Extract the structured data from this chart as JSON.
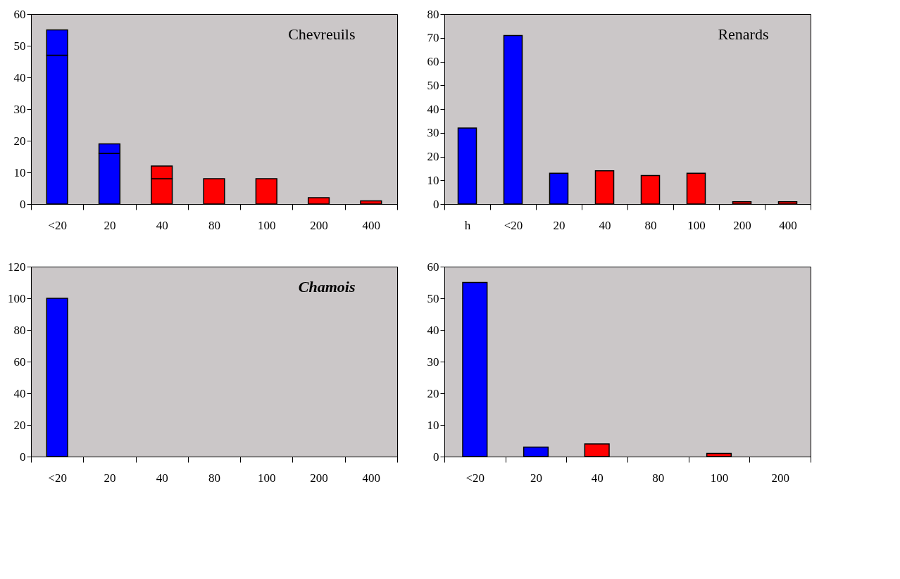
{
  "chart_data": [
    {
      "type": "bar",
      "title": "Chevreuils",
      "categories": [
        "<20",
        "20",
        "40",
        "80",
        "100",
        "200",
        "400"
      ],
      "stacked": true,
      "ylim": [
        0,
        60
      ],
      "yticks": [
        0,
        10,
        20,
        30,
        40,
        50,
        60
      ],
      "grid": false,
      "series": [
        {
          "colors": [
            "#0000ff",
            "#0000ff",
            "#ff0000",
            "#ff0000",
            "#ff0000",
            "#ff0000",
            "#ff0000"
          ],
          "values": [
            47,
            16,
            8,
            8,
            8,
            2,
            1
          ]
        },
        {
          "colors": [
            "#0000ff",
            "#0000ff",
            "#ff0000",
            null,
            null,
            null,
            null
          ],
          "values": [
            8,
            3,
            4,
            null,
            null,
            null,
            null
          ]
        }
      ]
    },
    {
      "type": "bar",
      "title": "Renards",
      "categories": [
        "h",
        "<20",
        "20",
        "40",
        "80",
        "100",
        "200",
        "400"
      ],
      "ylim": [
        0,
        80
      ],
      "yticks": [
        0,
        10,
        20,
        30,
        40,
        50,
        60,
        70,
        80
      ],
      "grid": false,
      "colors": [
        "#0000ff",
        "#0000ff",
        "#0000ff",
        "#ff0000",
        "#ff0000",
        "#ff0000",
        "#ff0000",
        "#ff0000"
      ],
      "values": [
        32,
        71,
        13,
        14,
        12,
        13,
        1,
        1
      ]
    },
    {
      "type": "bar",
      "title": "Chamois",
      "categories": [
        "<20",
        "20",
        "40",
        "80",
        "100",
        "200",
        "400"
      ],
      "ylim": [
        0,
        120
      ],
      "yticks": [
        0,
        20,
        40,
        60,
        80,
        100,
        120
      ],
      "grid": false,
      "colors": [
        "#0000ff",
        null,
        null,
        null,
        null,
        null,
        null
      ],
      "values": [
        100,
        null,
        null,
        null,
        null,
        null,
        null
      ]
    },
    {
      "type": "bar",
      "categories": [
        "<20",
        "20",
        "40",
        "80",
        "100",
        "200"
      ],
      "ylim": [
        0,
        60
      ],
      "yticks": [
        0,
        10,
        20,
        30,
        40,
        50,
        60
      ],
      "grid": false,
      "colors": [
        "#0000ff",
        "#0000ff",
        "#ff0000",
        null,
        "#ff0000",
        null
      ],
      "values": [
        55,
        3,
        4,
        null,
        1,
        null
      ]
    }
  ]
}
